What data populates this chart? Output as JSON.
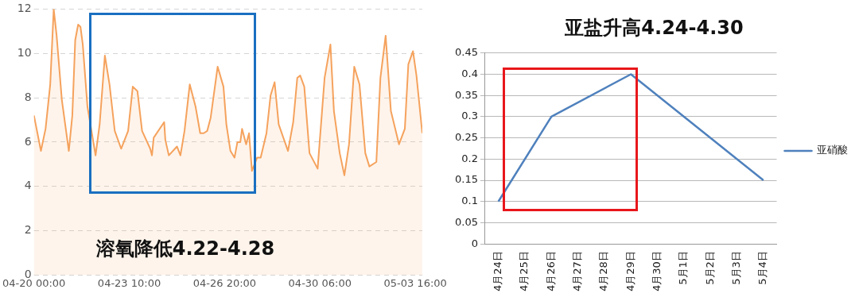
{
  "chart_data": [
    {
      "type": "area",
      "x": [
        "--04-20T00:00",
        "--04-20T06:00",
        "--04-20T10:00",
        "--04-20T14:00",
        "--04-20T17:00",
        "--04-20T19:30",
        "--04-21T00:00",
        "--04-21T06:00",
        "--04-21T09:00",
        "--04-21T11:30",
        "--04-21T14:00",
        "--04-21T16:00",
        "--04-21T18:00",
        "--04-21T22:00",
        "--04-22T05:00",
        "--04-22T08:30",
        "--04-22T13:00",
        "--04-22T17:00",
        "--04-22T21:30",
        "--04-23T03:00",
        "--04-23T09:00",
        "--04-23T13:00",
        "--04-23T17:00",
        "--04-23T21:00",
        "--04-24T04:00",
        "--04-24T05:30",
        "--04-24T07:00",
        "--04-24T16:00",
        "--04-24T17:00",
        "--04-24T20:00",
        "--04-25T03:00",
        "--04-25T06:00",
        "--04-25T09:30",
        "--04-25T14:00",
        "--04-25T19:00",
        "--04-25T23:00",
        "--04-26T02:00",
        "--04-26T05:00",
        "--04-26T08:00",
        "--04-26T14:00",
        "--04-26T19:00",
        "--04-26T21:30",
        "--04-27T01:00",
        "--04-27T04:30",
        "--04-27T07:00",
        "--04-27T09:30",
        "--04-27T11:00",
        "--04-27T14:30",
        "--04-27T17:00",
        "--04-27T19:30",
        "--04-28T00:00",
        "--04-28T03:00",
        "--04-28T08:00",
        "--04-28T11:30",
        "--04-28T15:00",
        "--04-28T18:30",
        "--04-29T02:30",
        "--04-29T07:00",
        "--04-29T10:30",
        "--04-29T13:00",
        "--04-29T16:30",
        "--04-29T21:00",
        "--04-30T04:00",
        "--04-30T10:00",
        "--04-30T15:00",
        "--04-30T18:00",
        "--04-30T23:00",
        "--05-01T03:00",
        "--05-01T07:00",
        "--05-01T11:30",
        "--05-01T16:00",
        "--05-01T21:00",
        "--05-02T00:30",
        "--05-02T06:30",
        "--05-02T10:00",
        "--05-02T14:30",
        "--05-02T19:00",
        "--05-03T02:00",
        "--05-03T07:00",
        "--05-03T10:00",
        "--05-03T14:00",
        "--05-03T17:00",
        "--05-03T22:00"
      ],
      "series": [
        {
          "color": "#f5a25d",
          "values": [
            7.2,
            5.6,
            6.6,
            8.6,
            12,
            10.8,
            7.9,
            5.6,
            7.2,
            10.6,
            11.3,
            11.2,
            10.4,
            7.6,
            5.4,
            6.8,
            9.9,
            8.6,
            6.5,
            5.7,
            6.5,
            8.5,
            8.3,
            6.5,
            5.7,
            5.4,
            6.2,
            6.9,
            6.1,
            5.4,
            5.8,
            5.4,
            6.5,
            8.6,
            7.6,
            6.4,
            6.4,
            6.5,
            7.1,
            9.4,
            8.5,
            6.8,
            5.6,
            5.3,
            6,
            6,
            6.6,
            5.9,
            6.4,
            4.7,
            5.3,
            5.3,
            6.4,
            8.1,
            8.7,
            6.8,
            5.6,
            6.9,
            8.9,
            9,
            8.5,
            5.5,
            4.8,
            8.9,
            10.4,
            7.4,
            5.5,
            4.5,
            5.9,
            9.4,
            8.6,
            5.5,
            4.9,
            5.1,
            8.9,
            10.8,
            7.4,
            5.9,
            6.6,
            9.5,
            10.1,
            9,
            6.4
          ]
        }
      ],
      "xlim": [
        "--04-20T00:00",
        "--05-03T22:00"
      ],
      "xticks": [
        {
          "value": "--04-20T00:00",
          "label": "04-20 00:00"
        },
        {
          "value": "--04-23T10:00",
          "label": "04-23 10:00"
        },
        {
          "value": "--04-26T20:00",
          "label": "04-26 20:00"
        },
        {
          "value": "--04-30T06:00",
          "label": "04-30 06:00"
        },
        {
          "value": "--05-03T16:00",
          "label": "05-03 16:00"
        }
      ],
      "ylim": [
        0,
        12
      ],
      "yticks": [
        0,
        2,
        4,
        6,
        8,
        10,
        12
      ],
      "grid": "y",
      "marker": "none",
      "legend": false,
      "annotations": [
        "溶氧降低4.22-4.28"
      ]
    },
    {
      "type": "line",
      "title": "亚盐升高4.24-4.30",
      "categories": [
        "4月24日",
        "4月25日",
        "4月26日",
        "4月27日",
        "4月28日",
        "4月29日",
        "4月30日",
        "5月1日",
        "5月2日",
        "5月3日",
        "5月4日"
      ],
      "series": [
        {
          "name": "亚硝酸",
          "color": "#4f81bd",
          "values": [
            0.1,
            null,
            0.3,
            null,
            null,
            0.4,
            null,
            null,
            null,
            null,
            0.15
          ]
        }
      ],
      "ylim": [
        0,
        0.45
      ],
      "yticks": [
        0,
        0.05,
        0.1,
        0.15,
        0.2,
        0.25,
        0.3,
        0.35,
        0.4,
        0.45
      ],
      "grid": "y",
      "marker": "none",
      "legend": "right"
    }
  ]
}
